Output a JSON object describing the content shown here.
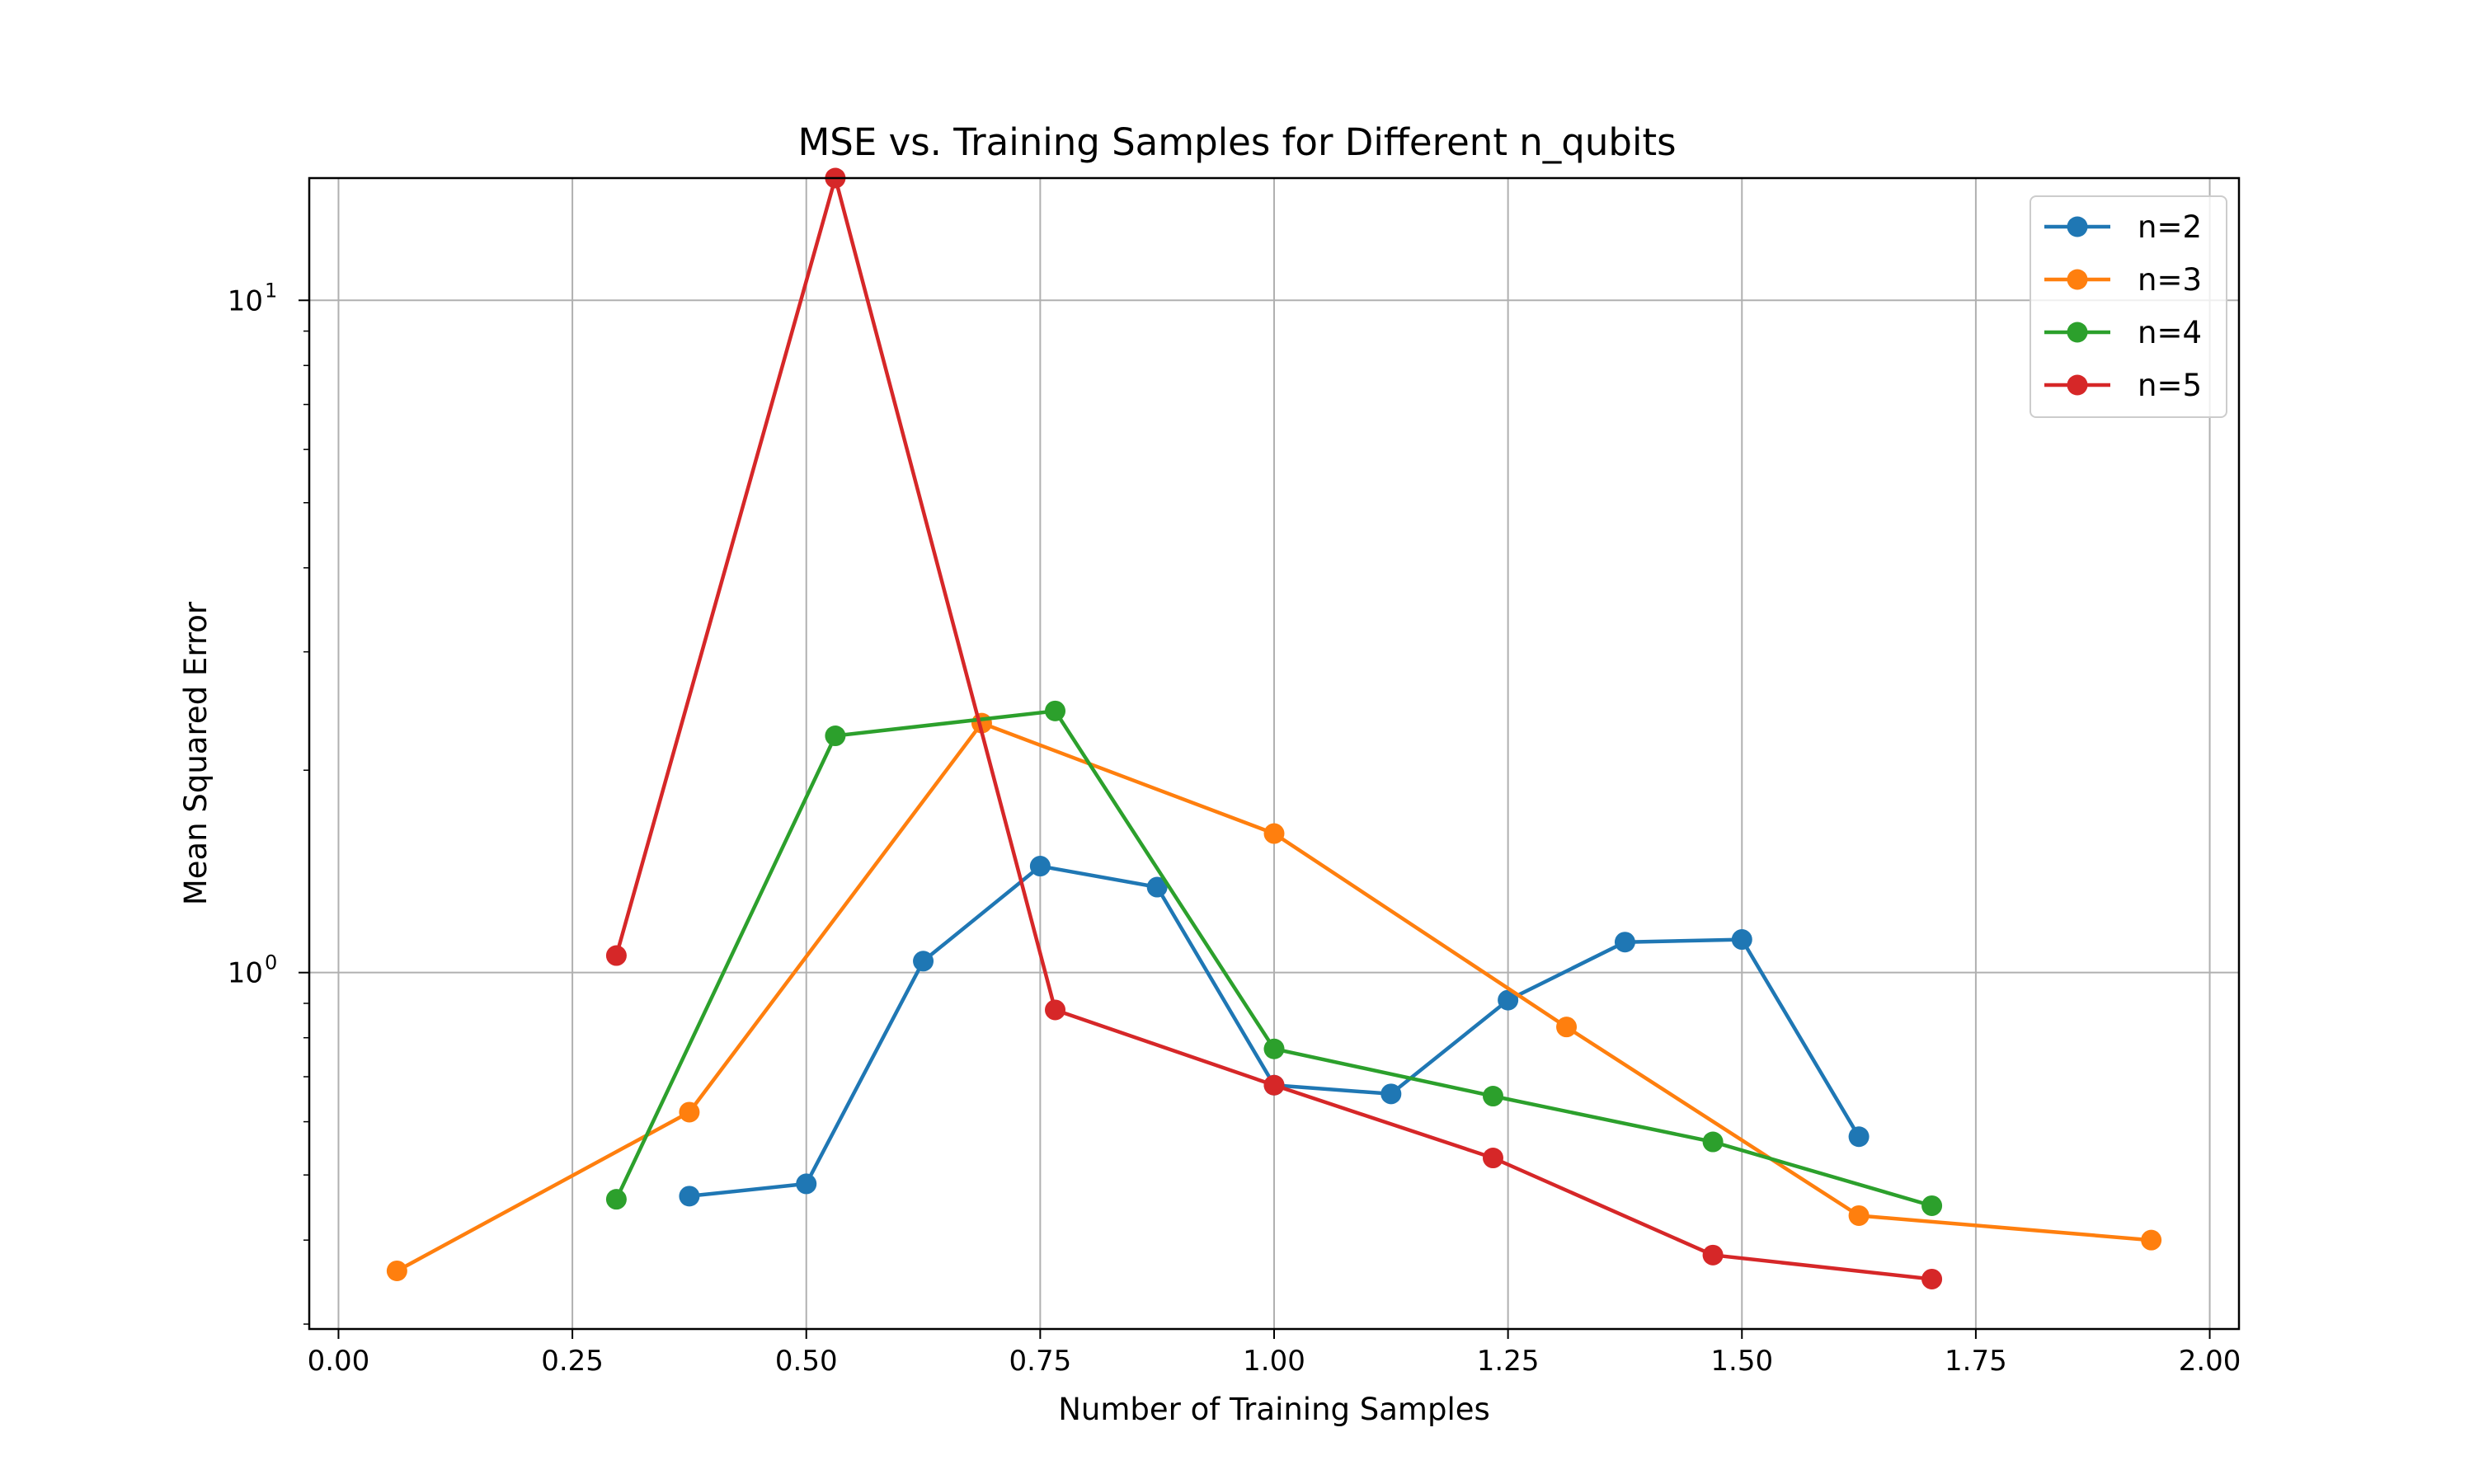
{
  "chart_data": {
    "type": "line",
    "title": "MSE vs. Training Samples for Different n_qubits",
    "xlabel": "Number of Training Samples",
    "ylabel": "Mean Squared Error",
    "xlim": [
      -0.03125,
      2.03125
    ],
    "ylim": [
      0.295,
      15.2
    ],
    "yscale": "log",
    "grid": true,
    "legend_position": "top-right",
    "x_ticks": [
      "0.00",
      "0.25",
      "0.50",
      "0.75",
      "1.00",
      "1.25",
      "1.50",
      "1.75",
      "2.00"
    ],
    "x_tick_values": [
      0,
      0.25,
      0.5,
      0.75,
      1.0,
      1.25,
      1.5,
      1.75,
      2.0
    ],
    "y_ticks": [
      {
        "value": 1,
        "base": "10",
        "exp": "0"
      },
      {
        "value": 10,
        "base": "10",
        "exp": "1"
      }
    ],
    "series": [
      {
        "name": "n=2",
        "color": "#1f77b4",
        "x": [
          0.375,
          0.5,
          0.625,
          0.75,
          0.875,
          1.0,
          1.125,
          1.25,
          1.375,
          1.5,
          1.625
        ],
        "y": [
          0.465,
          0.485,
          1.04,
          1.44,
          1.34,
          0.68,
          0.66,
          0.91,
          1.11,
          1.12,
          0.57
        ]
      },
      {
        "name": "n=3",
        "color": "#ff7f0e",
        "x": [
          0.0625,
          0.375,
          0.6875,
          1.0,
          1.3125,
          1.625,
          1.9375
        ],
        "y": [
          0.36,
          0.62,
          2.35,
          1.61,
          0.83,
          0.435,
          0.4
        ]
      },
      {
        "name": "n=4",
        "color": "#2ca02c",
        "x": [
          0.297,
          0.531,
          0.766,
          1.0,
          1.234,
          1.469,
          1.703
        ],
        "y": [
          0.46,
          2.25,
          2.45,
          0.77,
          0.655,
          0.56,
          0.45
        ]
      },
      {
        "name": "n=5",
        "color": "#d62728",
        "x": [
          0.297,
          0.531,
          0.766,
          1.0,
          1.234,
          1.469,
          1.703
        ],
        "y": [
          1.06,
          15.2,
          0.88,
          0.68,
          0.53,
          0.38,
          0.35
        ]
      }
    ]
  }
}
